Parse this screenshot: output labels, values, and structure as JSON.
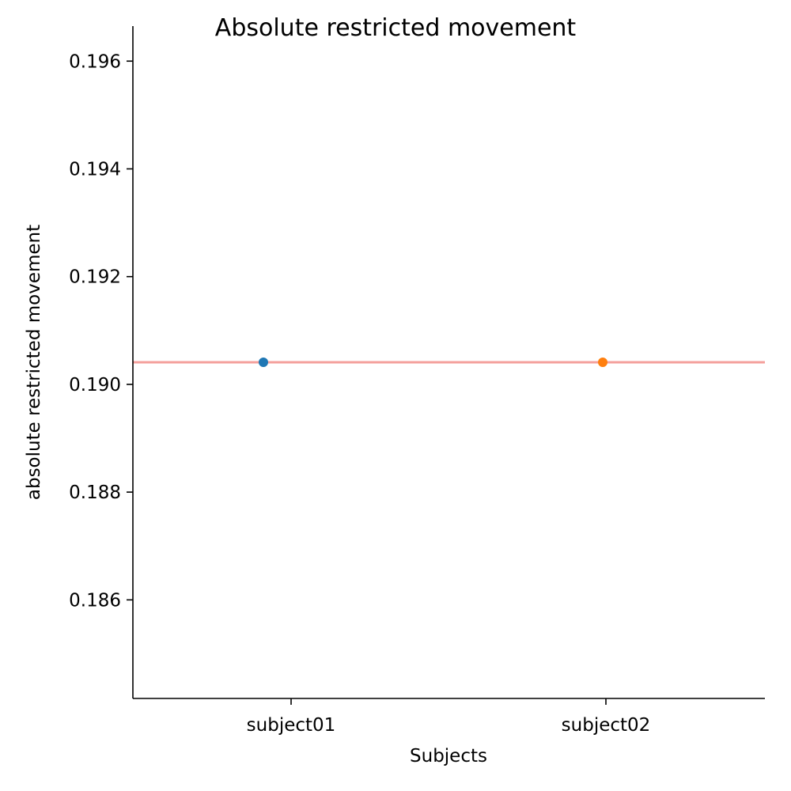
{
  "chart_data": {
    "type": "scatter",
    "title": "Absolute restricted movement",
    "xlabel": "Subjects",
    "ylabel": "absolute restricted movement",
    "categories": [
      "subject01",
      "subject02"
    ],
    "series": [
      {
        "name": "subject01",
        "x": "subject01",
        "y": 0.19041,
        "color": "#1f77b4"
      },
      {
        "name": "subject02",
        "x": "subject02",
        "y": 0.19041,
        "color": "#ff7f0e"
      }
    ],
    "reference_line": {
      "y": 0.19041,
      "color": "#f4a09c"
    },
    "yticks": [
      0.186,
      0.188,
      0.19,
      0.192,
      0.194,
      0.196
    ],
    "ytick_labels": [
      "0.186",
      "0.188",
      "0.190",
      "0.192",
      "0.194",
      "0.196"
    ],
    "ylim": [
      0.18417,
      0.19665
    ],
    "grid": false
  }
}
